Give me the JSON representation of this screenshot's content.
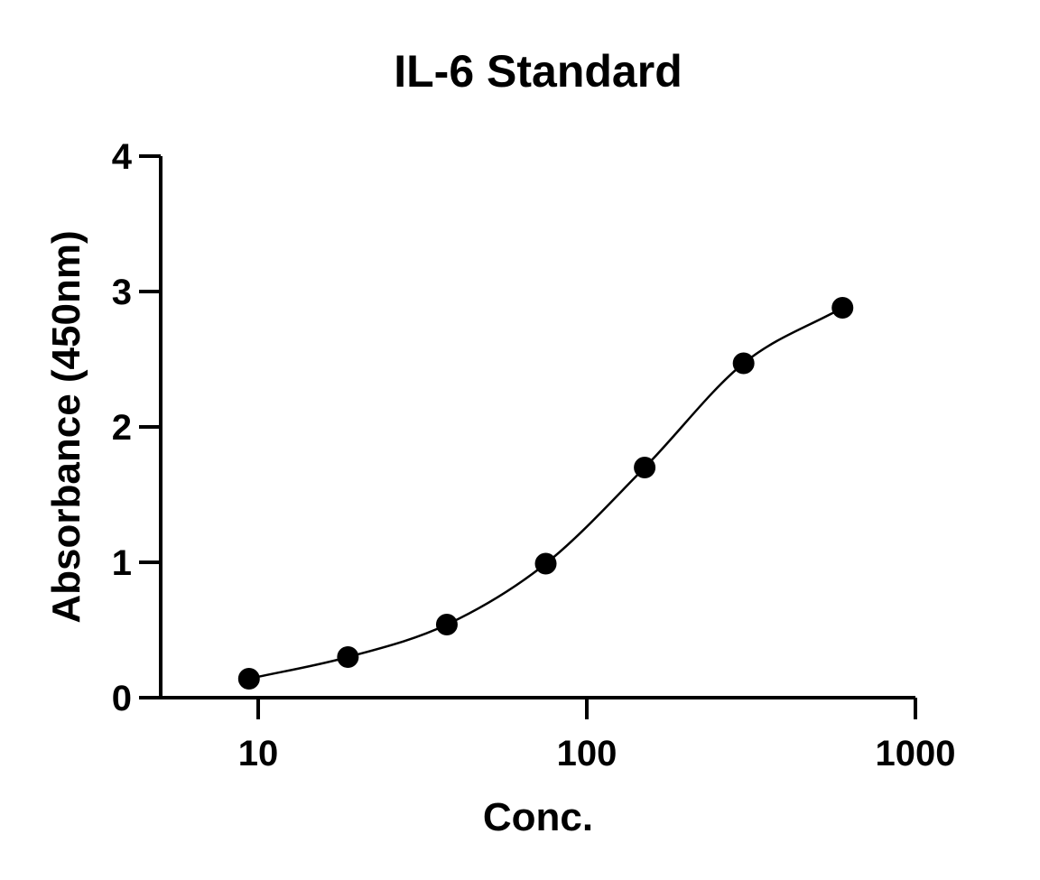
{
  "chart_data": {
    "type": "scatter",
    "title": "IL-6 Standard",
    "xlabel": "Conc.",
    "ylabel": "Absorbance (450nm)",
    "x_scale": "log",
    "xlim": [
      5,
      1000
    ],
    "ylim": [
      0,
      4
    ],
    "x_ticks": [
      10,
      100,
      1000
    ],
    "x_tick_labels": [
      "10",
      "100",
      "1000"
    ],
    "y_ticks": [
      0,
      1,
      2,
      3,
      4
    ],
    "y_tick_labels": [
      "0",
      "1",
      "2",
      "3",
      "4"
    ],
    "grid": false,
    "legend": "none",
    "series": [
      {
        "x": [
          9.375,
          18.75,
          37.5,
          75,
          150,
          300,
          600
        ],
        "y": [
          0.14,
          0.3,
          0.54,
          0.99,
          1.7,
          2.47,
          2.88
        ]
      }
    ],
    "fit_curve": "four-parameter logistic",
    "colors": {
      "points": "#000000",
      "curve": "#000000",
      "axes": "#000000"
    }
  }
}
